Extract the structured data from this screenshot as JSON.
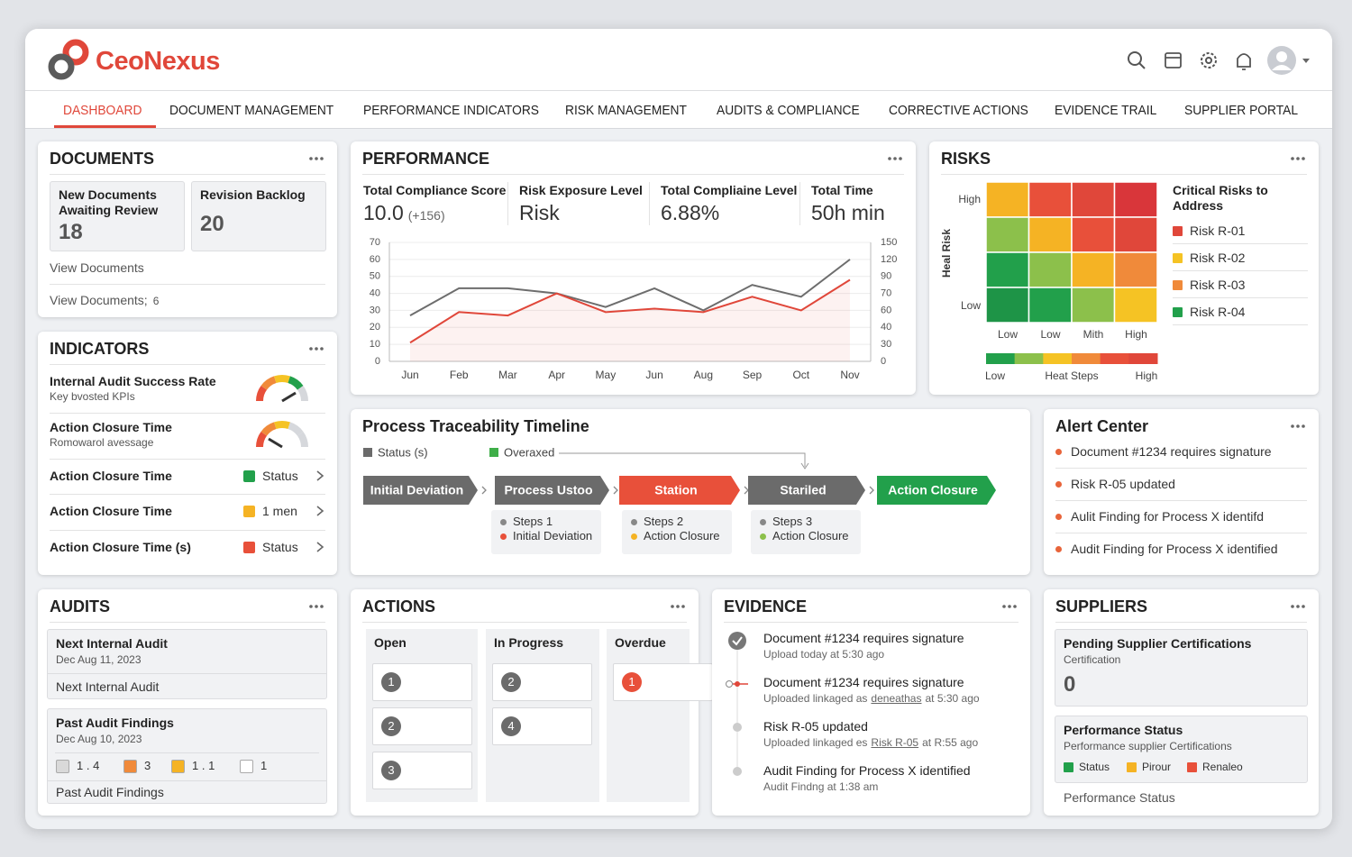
{
  "header": {
    "logo": "CeoNexus"
  },
  "nav": {
    "items": [
      "DASHBOARD",
      "DOCUMENT MANAGEMENT",
      "PERFORMANCE INDICATORS",
      "RISK MANAGEMENT",
      "AUDITS & COMPLIANCE",
      "CORRECTIVE ACTIONS",
      "EVIDENCE TRAIL",
      "SUPPLIER PORTAL"
    ],
    "active": 0
  },
  "documents": {
    "title": "DOCUMENTS",
    "cards": [
      {
        "label": "New Documents Awaiting Review",
        "value": 18
      },
      {
        "label": "Revision Backlog",
        "value": 20
      }
    ],
    "links": [
      {
        "text": "View Documents"
      },
      {
        "text": "View Documents;",
        "count": 6
      }
    ]
  },
  "indicators": {
    "title": "INDICATORS",
    "rows": [
      {
        "title": "Internal Audit Success Rate",
        "subtitle": "Key bvosted KPIs"
      },
      {
        "title": "Action Closure Time",
        "subtitle": "Romowarol avessage"
      },
      {
        "title": "Action Closure Time",
        "status": "Status",
        "color": "#22a04b"
      },
      {
        "title": "Action Closure Time",
        "status": "1 men",
        "color": "#f5b324"
      },
      {
        "title": "Action Closure Time (s)",
        "status": "Status",
        "color": "#e8503a"
      }
    ]
  },
  "performance": {
    "title": "PERFORMANCE",
    "kpis": [
      {
        "label": "Total Compliance Score",
        "value": "10.0",
        "note": "(+156)"
      },
      {
        "label": "Risk Exposure Level",
        "value": "Risk"
      },
      {
        "label": "Total Compliaine Level",
        "value": "6.88%"
      },
      {
        "label": "Total Time",
        "value": "50h min"
      }
    ]
  },
  "chart_data": {
    "type": "line",
    "categories": [
      "Jun",
      "Feb",
      "Mar",
      "Apr",
      "May",
      "Jun",
      "Aug",
      "Sep",
      "Oct",
      "Nov"
    ],
    "series": [
      {
        "color": "#6d6d6d",
        "values": [
          27,
          43,
          43,
          40,
          32,
          43,
          30,
          45,
          38,
          60
        ]
      },
      {
        "color": "#e0473a",
        "values": [
          11,
          29,
          27,
          40,
          29,
          31,
          29,
          38,
          30,
          48
        ]
      }
    ],
    "ylim": [
      0,
      70
    ],
    "yticks": [
      0,
      10,
      20,
      30,
      40,
      50,
      60,
      70
    ],
    "y2ticks": [
      0,
      30,
      40,
      60,
      70,
      90,
      120,
      150
    ],
    "grid": true
  },
  "risks": {
    "title": "RISKS",
    "y_label": "Heal Risk",
    "y_categories": [
      "High",
      "Low"
    ],
    "x_categories": [
      "Low",
      "Low",
      "Mith",
      "High"
    ],
    "cells": [
      [
        "#f5b324",
        "#e8503a",
        "#e0473a",
        "#d9363a"
      ],
      [
        "#8cc04b",
        "#f5b324",
        "#e8503a",
        "#e0473a"
      ],
      [
        "#22a04b",
        "#8cc04b",
        "#f5b324",
        "#f08a3a"
      ],
      [
        "#1e9447",
        "#22a04b",
        "#8cc04b",
        "#f5c324"
      ]
    ],
    "scale": {
      "colors": [
        "#22a04b",
        "#8cc04b",
        "#f5c324",
        "#f08a3a",
        "#e8503a",
        "#e0473a"
      ],
      "labels": [
        "Low",
        "Heat Steps",
        "High"
      ]
    },
    "critical": {
      "title": "Critical Risks to Address",
      "items": [
        {
          "label": "Risk R-01",
          "color": "#e0473a"
        },
        {
          "label": "Risk R-02",
          "color": "#f5c324"
        },
        {
          "label": "Risk R-03",
          "color": "#f08a3a"
        },
        {
          "label": "Risk R-04",
          "color": "#22a04b"
        }
      ]
    }
  },
  "timeline": {
    "title": "Process Traceability Timeline",
    "legend": [
      {
        "label": "Status (s)",
        "color": "#6b6b6b"
      },
      {
        "label": "Overaxed",
        "color": "#3fae49"
      }
    ],
    "steps": [
      {
        "label": "Initial Deviation",
        "color": "#6b6b6b"
      },
      {
        "label": "Process Ustoo",
        "color": "#6b6b6b"
      },
      {
        "label": "Station",
        "color": "#e8503a"
      },
      {
        "label": "Stariled",
        "color": "#6b6b6b"
      },
      {
        "label": "Action Closure",
        "color": "#22a04b"
      }
    ],
    "cards": [
      [
        {
          "label": "Steps 1",
          "color": "#888888"
        },
        {
          "label": "Initial Deviation",
          "color": "#e8503a"
        }
      ],
      [
        {
          "label": "Steps 2",
          "color": "#888888"
        },
        {
          "label": "Action Closure",
          "color": "#f5b324"
        }
      ],
      [
        {
          "label": "Steps 3",
          "color": "#888888"
        },
        {
          "label": "Action Closure",
          "color": "#8cc04b"
        }
      ]
    ]
  },
  "alerts": {
    "title": "Alert Center",
    "color": "#e8643a",
    "items": [
      "Document #1234 requires signature",
      "Risk R-05 updated",
      "Aulit Finding for Process X identifd",
      "Audit Finding for Process X identified"
    ]
  },
  "audits": {
    "title": "AUDITS",
    "next": {
      "title": "Next Internal Audit",
      "date": "Dec Aug 11, 2023",
      "footer": "Next Internal Audit"
    },
    "past": {
      "title": "Past Audit Findings",
      "date": "Dec Aug 10, 2023",
      "counts": [
        {
          "label": "1 . 4",
          "color": "#d9d9d9"
        },
        {
          "label": "3",
          "color": "#f08a3a"
        },
        {
          "label": "1 . 1",
          "color": "#f5b324"
        },
        {
          "label": "1",
          "color": "#ffffff"
        }
      ],
      "footer": "Past Audit Findings"
    }
  },
  "actions": {
    "title": "ACTIONS",
    "columns": [
      {
        "name": "Open",
        "color": "#6b6b6b",
        "items": [
          1,
          2,
          3
        ]
      },
      {
        "name": "In Progress",
        "color": "#6b6b6b",
        "items": [
          2,
          4
        ]
      },
      {
        "name": "Overdue",
        "color": "#e8503a",
        "items": [
          1
        ]
      }
    ]
  },
  "evidence": {
    "title": "EVIDENCE",
    "items": [
      {
        "title": "Document #1234 requires signature",
        "detail": {
          "text": "Upload today at 5:30 ago"
        }
      },
      {
        "title": "Document #1234 requires signature",
        "detail": {
          "text": "Uploaded linkaged as",
          "link": "deneathas",
          "post": "at 5:30 ago"
        }
      },
      {
        "title": "Risk R-05 updated",
        "detail": {
          "text": "Uploaded linkaged es",
          "link": "Risk R-05",
          "post": "at R:55 ago"
        }
      },
      {
        "title": "Audit Finding for Process X identified",
        "detail": {
          "text": "Audit Findng at 1:38 am"
        }
      }
    ]
  },
  "suppliers": {
    "title": "SUPPLIERS",
    "pending": {
      "title": "Pending Supplier Certifications",
      "subtitle": "Certification",
      "value": 0
    },
    "status": {
      "title": "Performance Status",
      "subtitle": "Performance supplier Certifications",
      "legend": [
        {
          "label": "Status",
          "color": "#22a04b"
        },
        {
          "label": "Pirour",
          "color": "#f5b324"
        },
        {
          "label": "Renaleo",
          "color": "#e8503a"
        }
      ]
    },
    "footer": "Performance Status"
  }
}
